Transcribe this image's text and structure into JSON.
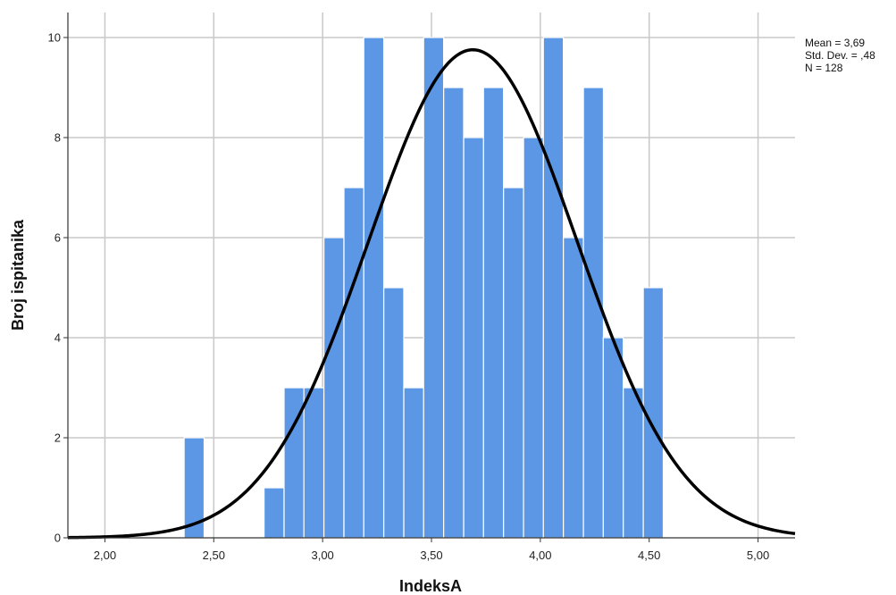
{
  "chart_data": {
    "type": "bar",
    "title": "",
    "xlabel": "IndeksA",
    "ylabel": "Broj ispitanika",
    "xlim": [
      1.83,
      5.17
    ],
    "ylim": [
      0,
      10.5
    ],
    "x_ticks": [
      {
        "value": 2.0,
        "label": "2,00"
      },
      {
        "value": 2.5,
        "label": "2,50"
      },
      {
        "value": 3.0,
        "label": "3,00"
      },
      {
        "value": 3.5,
        "label": "3,50"
      },
      {
        "value": 4.0,
        "label": "4,00"
      },
      {
        "value": 4.5,
        "label": "4,50"
      },
      {
        "value": 5.0,
        "label": "5,00"
      }
    ],
    "y_ticks": [
      {
        "value": 0,
        "label": "0"
      },
      {
        "value": 2,
        "label": "2"
      },
      {
        "value": 4,
        "label": "4"
      },
      {
        "value": 6,
        "label": "6"
      },
      {
        "value": 8,
        "label": "8"
      },
      {
        "value": 10,
        "label": "10"
      }
    ],
    "bin_width": 0.0917,
    "bins": [
      {
        "start": 2.364,
        "value": 2
      },
      {
        "start": 2.731,
        "value": 1
      },
      {
        "start": 2.823,
        "value": 3
      },
      {
        "start": 2.914,
        "value": 3
      },
      {
        "start": 3.006,
        "value": 6
      },
      {
        "start": 3.098,
        "value": 7
      },
      {
        "start": 3.189,
        "value": 10
      },
      {
        "start": 3.281,
        "value": 5
      },
      {
        "start": 3.373,
        "value": 3
      },
      {
        "start": 3.464,
        "value": 10
      },
      {
        "start": 3.556,
        "value": 9
      },
      {
        "start": 3.648,
        "value": 8
      },
      {
        "start": 3.739,
        "value": 9
      },
      {
        "start": 3.831,
        "value": 7
      },
      {
        "start": 3.923,
        "value": 8
      },
      {
        "start": 4.014,
        "value": 10
      },
      {
        "start": 4.106,
        "value": 6
      },
      {
        "start": 4.198,
        "value": 9
      },
      {
        "start": 4.289,
        "value": 4
      },
      {
        "start": 4.381,
        "value": 3
      },
      {
        "start": 4.473,
        "value": 5
      }
    ],
    "normal_curve": {
      "mean": 3.69,
      "sd": 0.48,
      "n": 128
    },
    "stats": [
      "Mean = 3,69",
      "Std. Dev. = ,48",
      "N = 128"
    ],
    "grid": true,
    "colors": {
      "bar": "#5b97e5",
      "bar_edge": "#ffffff",
      "curve": "#000000",
      "grid": "#c8c8c8",
      "axis": "#333333"
    }
  }
}
